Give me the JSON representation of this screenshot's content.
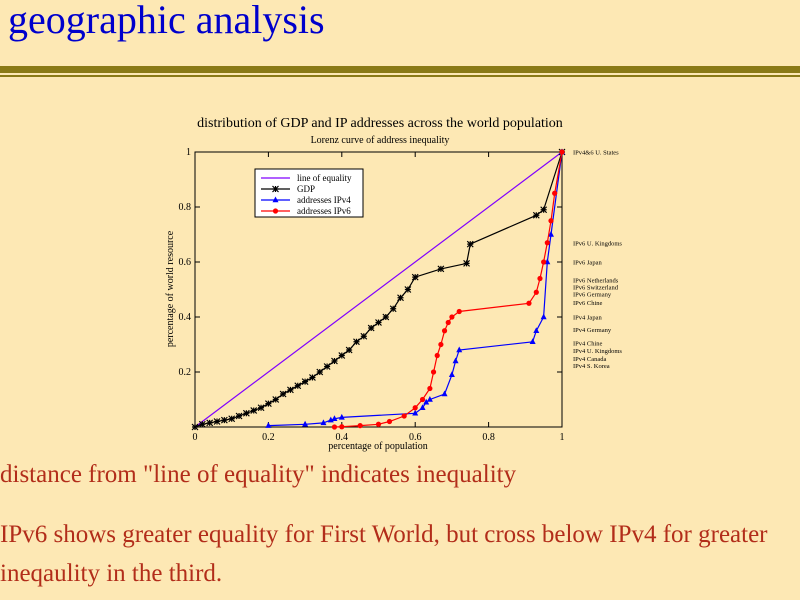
{
  "slide": {
    "title": "geographic analysis",
    "line1": "distance from \"line of equality\" indicates inequality",
    "line2": "IPv6 shows greater equality for First World, but cross below IPv4 for greater ineqaulity in the third.",
    "colors": {
      "background": "#fde8b4",
      "title": "#0000cc",
      "rule": "#8a7a16",
      "body_text": "#b22d1a"
    }
  },
  "chart_data": {
    "type": "line",
    "title": "distribution of GDP and IP addresses across the world population",
    "subtitle": "Lorenz curve of address inequality",
    "xlabel": "percentage of population",
    "ylabel": "percentage of world resource",
    "xlim": [
      0,
      1
    ],
    "ylim": [
      0,
      1
    ],
    "xticks": [
      0,
      0.2,
      0.4,
      0.6,
      0.8,
      1
    ],
    "xtick_labels": [
      "0",
      "0.2",
      "0.4",
      "0.6",
      "0.8",
      "1"
    ],
    "yticks": [
      0.2,
      0.4,
      0.6,
      0.8,
      1
    ],
    "ytick_labels": [
      "0.2",
      "0.4",
      "0.6",
      "0.8",
      "1"
    ],
    "grid": false,
    "legend_position": "top-left",
    "series": [
      {
        "name": "line of equality",
        "color": "#8000ff",
        "marker": "none",
        "x": [
          0,
          1
        ],
        "y": [
          0,
          1
        ]
      },
      {
        "name": "GDP",
        "color": "#000000",
        "marker": "star",
        "x": [
          0,
          0.02,
          0.04,
          0.06,
          0.08,
          0.1,
          0.12,
          0.14,
          0.16,
          0.18,
          0.2,
          0.22,
          0.24,
          0.26,
          0.28,
          0.3,
          0.32,
          0.34,
          0.36,
          0.38,
          0.4,
          0.42,
          0.44,
          0.46,
          0.48,
          0.5,
          0.52,
          0.54,
          0.56,
          0.58,
          0.6,
          0.67,
          0.74,
          0.75,
          0.93,
          0.95,
          1.0
        ],
        "y": [
          0,
          0.01,
          0.015,
          0.02,
          0.025,
          0.03,
          0.04,
          0.05,
          0.06,
          0.07,
          0.085,
          0.1,
          0.12,
          0.135,
          0.15,
          0.165,
          0.18,
          0.2,
          0.22,
          0.24,
          0.26,
          0.28,
          0.31,
          0.33,
          0.36,
          0.38,
          0.4,
          0.43,
          0.47,
          0.5,
          0.545,
          0.575,
          0.595,
          0.665,
          0.77,
          0.79,
          1.0
        ]
      },
      {
        "name": "addresses IPv4",
        "color": "#0000ff",
        "marker": "triangle",
        "x": [
          0.2,
          0.3,
          0.35,
          0.37,
          0.38,
          0.4,
          0.6,
          0.62,
          0.63,
          0.64,
          0.68,
          0.7,
          0.71,
          0.72,
          0.92,
          0.93,
          0.95,
          0.96,
          0.97,
          1.0
        ],
        "y": [
          0.005,
          0.01,
          0.015,
          0.025,
          0.03,
          0.035,
          0.05,
          0.07,
          0.09,
          0.1,
          0.12,
          0.19,
          0.24,
          0.28,
          0.31,
          0.35,
          0.4,
          0.6,
          0.7,
          1.0
        ]
      },
      {
        "name": "addresses IPv6",
        "color": "#ff0000",
        "marker": "circle",
        "x": [
          0.38,
          0.4,
          0.45,
          0.5,
          0.53,
          0.57,
          0.6,
          0.62,
          0.64,
          0.65,
          0.66,
          0.67,
          0.68,
          0.69,
          0.7,
          0.72,
          0.91,
          0.93,
          0.94,
          0.95,
          0.96,
          0.97,
          0.98,
          1.0
        ],
        "y": [
          0,
          0.001,
          0.005,
          0.01,
          0.02,
          0.04,
          0.07,
          0.1,
          0.14,
          0.2,
          0.26,
          0.3,
          0.35,
          0.38,
          0.4,
          0.42,
          0.45,
          0.49,
          0.54,
          0.6,
          0.67,
          0.75,
          0.85,
          1.0
        ]
      }
    ],
    "annotations": [
      {
        "text": "IPv4&6 U. States",
        "y": 1.0
      },
      {
        "text": "IPv6 U. Kingdoms",
        "y": 0.67
      },
      {
        "text": "IPv6 Japan",
        "y": 0.6
      },
      {
        "text": "IPv6 Netherlands",
        "y": 0.535
      },
      {
        "text": "IPv6 Switzerland",
        "y": 0.51
      },
      {
        "text": "IPv6 Germany",
        "y": 0.483
      },
      {
        "text": "IPv6 Chine",
        "y": 0.453
      },
      {
        "text": "IPv4 Japan",
        "y": 0.4
      },
      {
        "text": "IPv4 Germany",
        "y": 0.355
      },
      {
        "text": "IPv4 Chine",
        "y": 0.305
      },
      {
        "text": "IPv4 U. Kingdoms",
        "y": 0.278
      },
      {
        "text": "IPv4 Canada",
        "y": 0.25
      },
      {
        "text": "IPv4 S. Korea",
        "y": 0.223
      }
    ]
  }
}
